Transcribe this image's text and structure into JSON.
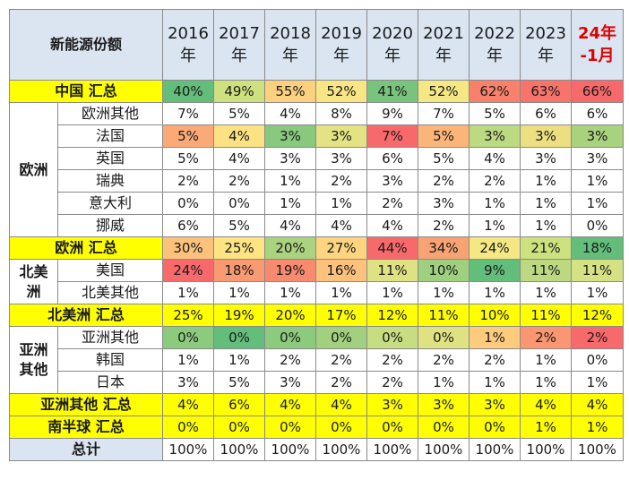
{
  "header": {
    "title": "新能源份额",
    "years": [
      [
        "2016",
        "年"
      ],
      [
        "2017",
        "年"
      ],
      [
        "2018",
        "年"
      ],
      [
        "2019",
        "年"
      ],
      [
        "2020",
        "年"
      ],
      [
        "2021",
        "年"
      ],
      [
        "2022",
        "年"
      ],
      [
        "2023",
        "年"
      ],
      [
        "24年",
        "-1月"
      ]
    ]
  },
  "rows": [
    {
      "kind": "total",
      "label": "中国 汇总",
      "values": [
        "40%",
        "49%",
        "55%",
        "52%",
        "41%",
        "52%",
        "62%",
        "63%",
        "66%"
      ],
      "colors": [
        "#63be7b",
        "#cfe07f",
        "#fbd07f",
        "#f8e584",
        "#79c47d",
        "#f5e784",
        "#f8816b",
        "#f8746a",
        "#f8696b"
      ]
    },
    {
      "kind": "sub",
      "group": "欧洲",
      "label": "欧洲其他",
      "values": [
        "7%",
        "5%",
        "4%",
        "8%",
        "9%",
        "7%",
        "5%",
        "6%",
        "6%"
      ]
    },
    {
      "kind": "sub",
      "group": "欧洲",
      "label": "法国",
      "values": [
        "5%",
        "4%",
        "3%",
        "3%",
        "7%",
        "5%",
        "3%",
        "3%",
        "3%"
      ],
      "colors": [
        "#fbaa77",
        "#fde283",
        "#89c87f",
        "#e3e383",
        "#f8696b",
        "#fcb579",
        "#bcda82",
        "#ecdf82",
        "#a9d27f"
      ]
    },
    {
      "kind": "sub",
      "group": "欧洲",
      "label": "英国",
      "values": [
        "5%",
        "4%",
        "3%",
        "3%",
        "6%",
        "5%",
        "4%",
        "3%",
        "3%"
      ]
    },
    {
      "kind": "sub",
      "group": "欧洲",
      "label": "瑞典",
      "values": [
        "2%",
        "2%",
        "1%",
        "2%",
        "3%",
        "2%",
        "2%",
        "1%",
        "1%"
      ]
    },
    {
      "kind": "sub",
      "group": "欧洲",
      "label": "意大利",
      "values": [
        "0%",
        "0%",
        "1%",
        "1%",
        "2%",
        "3%",
        "1%",
        "1%",
        "1%"
      ]
    },
    {
      "kind": "sub",
      "group": "欧洲",
      "label": "挪威",
      "values": [
        "6%",
        "5%",
        "4%",
        "4%",
        "4%",
        "2%",
        "1%",
        "1%",
        "0%"
      ]
    },
    {
      "kind": "total",
      "label": "欧洲 汇总",
      "values": [
        "30%",
        "25%",
        "20%",
        "27%",
        "44%",
        "34%",
        "24%",
        "21%",
        "18%"
      ],
      "colors": [
        "#fcc27c",
        "#fee483",
        "#aad27f",
        "#fdd580",
        "#f8696b",
        "#f8a374",
        "#f5e884",
        "#cde17f",
        "#63be7b"
      ]
    },
    {
      "kind": "sub",
      "group": "北美洲",
      "label": "美国",
      "values": [
        "24%",
        "18%",
        "19%",
        "16%",
        "11%",
        "10%",
        "9%",
        "11%",
        "11%"
      ],
      "colors": [
        "#f8696b",
        "#f99a72",
        "#f88b6f",
        "#fcc27c",
        "#dfe282",
        "#9ed07f",
        "#63be7b",
        "#bcd982",
        "#d5e182"
      ]
    },
    {
      "kind": "sub",
      "group": "北美洲",
      "label": "北美其他",
      "values": [
        "1%",
        "1%",
        "1%",
        "1%",
        "1%",
        "1%",
        "1%",
        "1%",
        "1%"
      ]
    },
    {
      "kind": "total",
      "label": "北美洲 汇总",
      "values": [
        "25%",
        "19%",
        "20%",
        "17%",
        "12%",
        "11%",
        "10%",
        "11%",
        "12%"
      ]
    },
    {
      "kind": "sub",
      "group": "亚洲其他",
      "label": "亚洲其他",
      "values": [
        "0%",
        "0%",
        "0%",
        "0%",
        "0%",
        "0%",
        "1%",
        "2%",
        "2%"
      ],
      "colors": [
        "#8ccb7e",
        "#63be7b",
        "#8ccb7e",
        "#a1d07f",
        "#c7dd81",
        "#dfe282",
        "#fdcb7d",
        "#fa9672",
        "#f8696b"
      ]
    },
    {
      "kind": "sub",
      "group": "亚洲其他",
      "label": "韩国",
      "values": [
        "1%",
        "1%",
        "2%",
        "2%",
        "2%",
        "2%",
        "2%",
        "1%",
        "0%"
      ]
    },
    {
      "kind": "sub",
      "group": "亚洲其他",
      "label": "日本",
      "values": [
        "3%",
        "5%",
        "3%",
        "2%",
        "2%",
        "1%",
        "1%",
        "1%",
        "1%"
      ]
    },
    {
      "kind": "total",
      "label": "亚洲其他 汇总",
      "values": [
        "4%",
        "6%",
        "4%",
        "4%",
        "3%",
        "3%",
        "3%",
        "4%",
        "4%"
      ]
    },
    {
      "kind": "total",
      "label": "南半球 汇总",
      "values": [
        "0%",
        "0%",
        "0%",
        "0%",
        "0%",
        "0%",
        "0%",
        "1%",
        "1%"
      ]
    },
    {
      "kind": "grand",
      "label": "总计",
      "values": [
        "100%",
        "100%",
        "100%",
        "100%",
        "100%",
        "100%",
        "100%",
        "100%",
        "100%"
      ]
    }
  ],
  "groups": {
    "欧洲": {
      "label": "欧洲"
    },
    "北美洲": {
      "label": "北美\n洲"
    },
    "亚洲其他": {
      "label": "亚洲\n其他"
    }
  },
  "colors": {
    "highlight": "#ffff00",
    "header_bg": "#dbe5f1",
    "red_text": "#e00000"
  }
}
